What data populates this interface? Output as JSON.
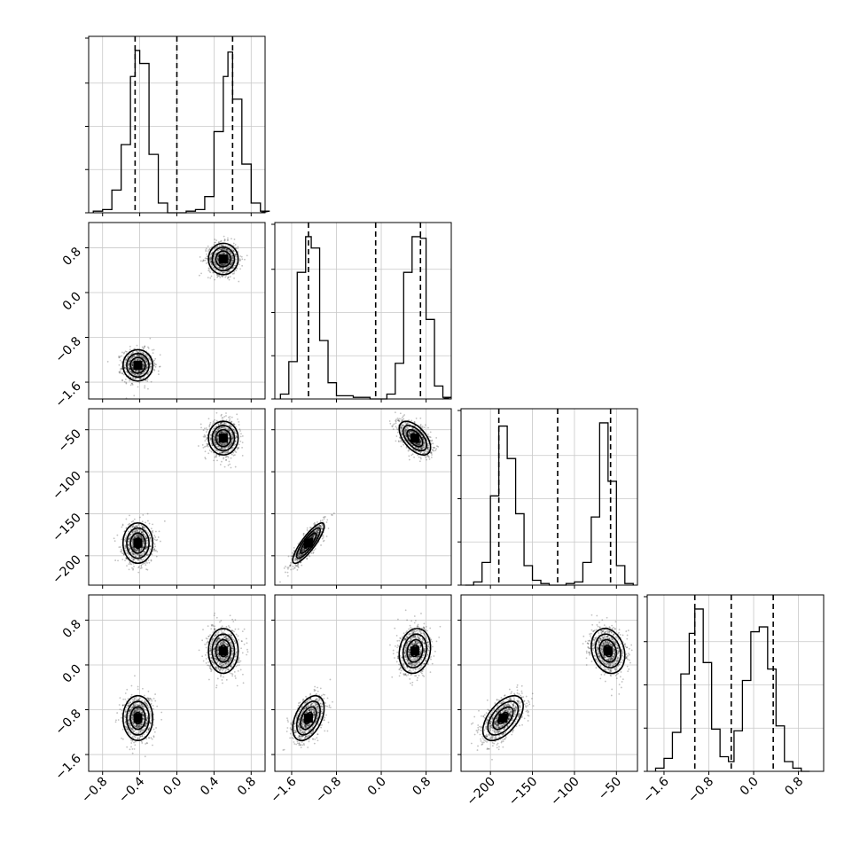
{
  "chart_data": {
    "type": "corner",
    "grid": true,
    "parameters": [
      {
        "range": [
          -0.95,
          0.95
        ],
        "ticks": [
          -0.8,
          -0.4,
          0.0,
          0.4,
          0.8
        ],
        "tick_labels": [
          "−0.8",
          "−0.4",
          "0.0",
          "0.4",
          "0.8"
        ],
        "quantiles": [
          -0.45,
          0.0,
          0.6
        ],
        "hist_bins": [
          -0.9,
          -0.8,
          -0.7,
          -0.6,
          -0.5,
          -0.45,
          -0.4,
          -0.3,
          -0.2,
          -0.1,
          0.0,
          0.1,
          0.2,
          0.3,
          0.4,
          0.5,
          0.55,
          0.6,
          0.7,
          0.8,
          0.9
        ],
        "hist_counts": [
          0.01,
          0.02,
          0.14,
          0.42,
          0.84,
          1.0,
          0.92,
          0.36,
          0.06,
          0.0,
          0.0,
          0.01,
          0.02,
          0.1,
          0.5,
          0.84,
          0.99,
          0.7,
          0.3,
          0.06,
          0.01
        ]
      },
      {
        "range": [
          -1.9,
          1.25
        ],
        "ticks": [
          -1.6,
          -0.8,
          0.0,
          0.8
        ],
        "tick_labels": [
          "−1.6",
          "−0.8",
          "0.0",
          "0.8"
        ],
        "quantiles": [
          -1.3,
          -0.1,
          0.7
        ],
        "hist_bins": [
          -1.8,
          -1.65,
          -1.5,
          -1.35,
          -1.25,
          -1.1,
          -0.95,
          -0.8,
          -0.5,
          -0.2,
          0.1,
          0.25,
          0.4,
          0.55,
          0.7,
          0.8,
          0.95,
          1.1
        ],
        "hist_counts": [
          0.03,
          0.23,
          0.78,
          1.0,
          0.93,
          0.36,
          0.1,
          0.02,
          0.01,
          0.0,
          0.03,
          0.22,
          0.78,
          1.0,
          0.99,
          0.49,
          0.08,
          0.01
        ]
      },
      {
        "range": [
          -235,
          -25
        ],
        "ticks": [
          -200,
          -150,
          -100,
          -50
        ],
        "tick_labels": [
          "−200",
          "−150",
          "−100",
          "−50"
        ],
        "quantiles": [
          -190,
          -120,
          -57
        ],
        "hist_bins": [
          -230,
          -220,
          -210,
          -200,
          -190,
          -180,
          -170,
          -160,
          -150,
          -140,
          -130,
          -120,
          -110,
          -100,
          -90,
          -80,
          -70,
          -60,
          -50,
          -40,
          -30
        ],
        "hist_counts": [
          0.0,
          0.02,
          0.14,
          0.55,
          0.98,
          0.78,
          0.44,
          0.12,
          0.03,
          0.01,
          0.0,
          0.0,
          0.01,
          0.02,
          0.14,
          0.42,
          1.0,
          0.64,
          0.12,
          0.01
        ]
      },
      {
        "range": [
          -1.9,
          1.25
        ],
        "ticks": [
          -1.6,
          -0.8,
          0.0,
          0.8
        ],
        "tick_labels": [
          "−1.6",
          "−0.8",
          "0.0",
          "0.8"
        ],
        "quantiles": [
          -1.05,
          -0.4,
          0.35
        ],
        "hist_bins": [
          -1.75,
          -1.6,
          -1.45,
          -1.3,
          -1.15,
          -1.05,
          -0.9,
          -0.75,
          -0.6,
          -0.45,
          -0.35,
          -0.2,
          -0.05,
          0.1,
          0.25,
          0.4,
          0.55,
          0.7,
          0.85,
          1.0
        ],
        "hist_counts": [
          0.02,
          0.08,
          0.24,
          0.6,
          0.85,
          1.0,
          0.67,
          0.26,
          0.09,
          0.06,
          0.25,
          0.56,
          0.86,
          0.89,
          0.63,
          0.28,
          0.06,
          0.02,
          0.0
        ]
      }
    ],
    "modes": [
      {
        "weight": 0.5,
        "mean": [
          -0.42,
          -1.3,
          -185,
          -0.95
        ],
        "sd": [
          0.08,
          0.14,
          12,
          0.2
        ],
        "corr": {
          "1-2": 0.85,
          "2-3": 0.55,
          "1-3": 0.45
        }
      },
      {
        "weight": 0.5,
        "mean": [
          0.5,
          0.6,
          -60,
          0.25
        ],
        "sd": [
          0.08,
          0.14,
          10,
          0.2
        ],
        "corr": {
          "1-2": -0.55,
          "2-3": -0.2,
          "1-3": 0.15
        }
      }
    ]
  }
}
